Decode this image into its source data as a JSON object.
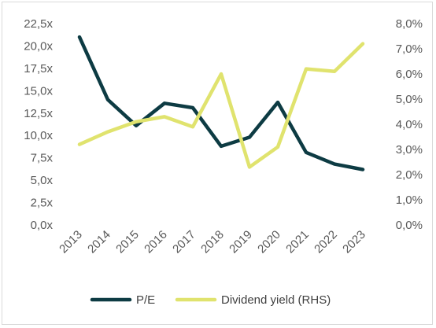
{
  "chart_data": {
    "type": "line",
    "title": "",
    "xlabel": "",
    "ylabel": "",
    "categories": [
      "2013",
      "2014",
      "2015",
      "2016",
      "2017",
      "2018",
      "2019",
      "2020",
      "2021",
      "2022",
      "2023"
    ],
    "series": [
      {
        "name": "P/E",
        "axis": "left",
        "color": "#0d3b43",
        "values": [
          21.0,
          14.0,
          11.1,
          13.6,
          13.1,
          8.8,
          9.8,
          13.7,
          8.1,
          6.8,
          6.2
        ]
      },
      {
        "name": "Dividend yield (RHS)",
        "axis": "right",
        "color": "#e0e36e",
        "values": [
          3.2,
          3.7,
          4.1,
          4.3,
          3.9,
          6.0,
          2.3,
          3.1,
          6.2,
          6.1,
          7.2
        ]
      }
    ],
    "y_left": {
      "min": 0,
      "max": 22.5,
      "ticks": [
        "0,0x",
        "2,5x",
        "5,0x",
        "7,5x",
        "10,0x",
        "12,5x",
        "15,0x",
        "17,5x",
        "20,0x",
        "22,5x"
      ]
    },
    "y_right": {
      "min": 0,
      "max": 8,
      "ticks": [
        "0,0%",
        "1,0%",
        "2,0%",
        "3,0%",
        "4,0%",
        "5,0%",
        "6,0%",
        "7,0%",
        "8,0%"
      ]
    },
    "grid": false,
    "legend": {
      "position": "bottom",
      "entries": [
        "P/E",
        "Dividend yield (RHS)"
      ]
    }
  }
}
